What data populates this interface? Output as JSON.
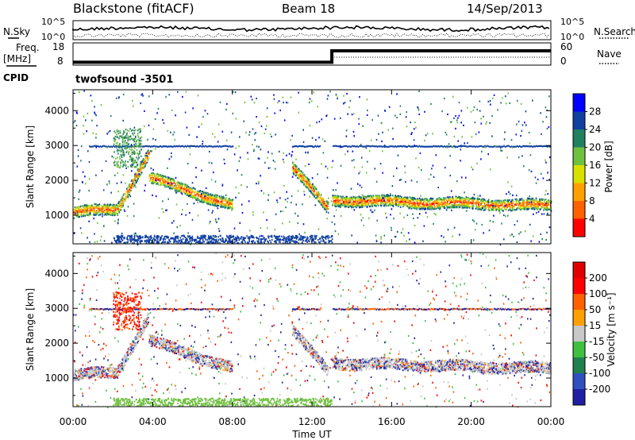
{
  "header": {
    "station": "Blackstone (fitACF)",
    "beam": "Beam 18",
    "date": "14/Sep/2013"
  },
  "summary_panels": {
    "nsky_label": "N.Sky",
    "nsearch_label": "N.Search",
    "noise_ticks_left": [
      "10^5",
      "10^0"
    ],
    "noise_ticks_right": [
      "10^5",
      "10^0"
    ],
    "freq_label_1": "Freq.",
    "freq_label_2": "[MHz]",
    "freq_ticks": [
      "18",
      "8"
    ],
    "nave_label": "Nave",
    "nave_ticks": [
      "60",
      "0"
    ],
    "freq_step": {
      "before_mhz": 9.5,
      "after_mhz": 15.5,
      "switch_time": "13:00"
    },
    "cpid_label": "CPID",
    "cpid_value": "twofsound  -3501"
  },
  "chart_data": [
    {
      "type": "heatmap",
      "name": "power",
      "ylabel": "Slant Range [km]",
      "yticks": [
        "4000",
        "3000",
        "2000",
        "1000"
      ],
      "ylim": [
        180,
        4600
      ],
      "colorbar_label": "Power [dB]",
      "colorbar_ticks": [
        "28",
        "24",
        "20",
        "16",
        "12",
        "8",
        "4"
      ],
      "colorbar_colors": [
        "#ff0000",
        "#ff6000",
        "#ffa000",
        "#d8e000",
        "#70c040",
        "#208060",
        "#1040a0",
        "#0000ff"
      ],
      "scatter_tracks": [
        {
          "t0": 0.0,
          "t1": 2.2,
          "r0": 1100,
          "r1": 1200
        },
        {
          "t0": 2.2,
          "t1": 3.8,
          "r0": 1200,
          "r1": 2800
        },
        {
          "t0": 3.8,
          "t1": 8.0,
          "r0": 2100,
          "r1": 1300
        },
        {
          "t0": 11.0,
          "t1": 12.8,
          "r0": 2400,
          "r1": 1200
        },
        {
          "t0": 13.0,
          "t1": 24.0,
          "r0": 1450,
          "r1": 1300
        }
      ],
      "range_line_km": 3000
    },
    {
      "type": "heatmap",
      "name": "velocity",
      "ylabel": "Slant Range [km]",
      "yticks": [
        "4000",
        "3000",
        "2000",
        "1000"
      ],
      "ylim": [
        180,
        4600
      ],
      "xlabel": "Time UT",
      "xticks": [
        "00:00",
        "04:00",
        "08:00",
        "12:00",
        "16:00",
        "20:00",
        "00:00"
      ],
      "xlim": [
        0,
        24
      ],
      "colorbar_label": "Velocity [m s⁻¹]",
      "colorbar_ticks": [
        "200",
        "100",
        "50",
        "15",
        "-15",
        "-50",
        "-100",
        "-200"
      ],
      "colorbar_colors": [
        "#2020a0",
        "#3050c0",
        "#208050",
        "#40c040",
        "#c8c8c8",
        "#ffa000",
        "#ff6000",
        "#ff0000",
        "#e00000"
      ],
      "range_line_km": 3000
    }
  ]
}
